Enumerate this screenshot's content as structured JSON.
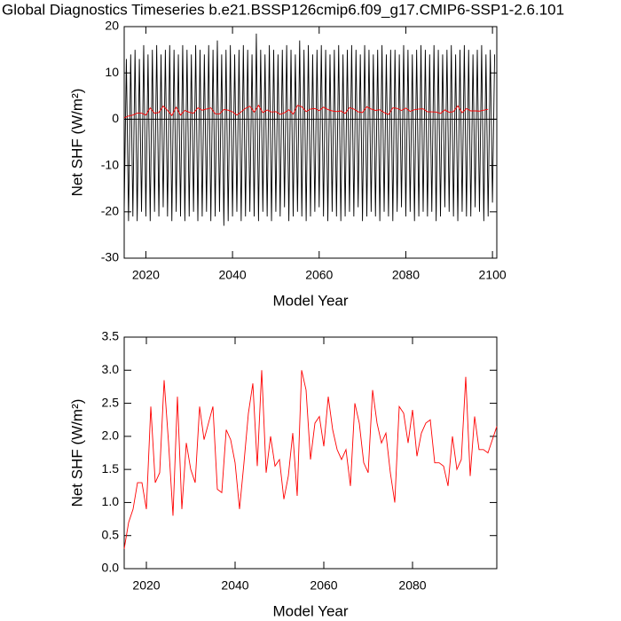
{
  "chart_data": [
    {
      "type": "line",
      "title": "Global Diagnostics Timeseries b.e21.BSSP126cmip6.f09_g17.CMIP6-SSP1-2.6.101",
      "xlabel": "Model Year",
      "ylabel": "Net SHF (W/m²)",
      "xlim": [
        2015,
        2101
      ],
      "ylim": [
        -30,
        20
      ],
      "xticks": [
        2020,
        2040,
        2060,
        2080,
        2100
      ],
      "yticks": [
        -30,
        -20,
        -10,
        0,
        10,
        20
      ],
      "hline": 0,
      "series": [
        {
          "color": "#000000",
          "x": [
            2015,
            2015.5,
            2016,
            2016.5,
            2017,
            2017.5,
            2018,
            2018.5,
            2019,
            2019.5,
            2020,
            2020.5,
            2021,
            2021.5,
            2022,
            2022.5,
            2023,
            2023.5,
            2024,
            2024.5,
            2025,
            2025.5,
            2026,
            2026.5,
            2027,
            2027.5,
            2028,
            2028.5,
            2029,
            2029.5,
            2030,
            2030.5,
            2031,
            2031.5,
            2032,
            2032.5,
            2033,
            2033.5,
            2034,
            2034.5,
            2035,
            2035.5,
            2036,
            2036.5,
            2037,
            2037.5,
            2038,
            2038.5,
            2039,
            2039.5,
            2040,
            2040.5,
            2041,
            2041.5,
            2042,
            2042.5,
            2043,
            2043.5,
            2044,
            2044.5,
            2045,
            2045.5,
            2046,
            2046.5,
            2047,
            2047.5,
            2048,
            2048.5,
            2049,
            2049.5,
            2050,
            2050.5,
            2051,
            2051.5,
            2052,
            2052.5,
            2053,
            2053.5,
            2054,
            2054.5,
            2055,
            2055.5,
            2056,
            2056.5,
            2057,
            2057.5,
            2058,
            2058.5,
            2059,
            2059.5,
            2060,
            2060.5,
            2061,
            2061.5,
            2062,
            2062.5,
            2063,
            2063.5,
            2064,
            2064.5,
            2065,
            2065.5,
            2066,
            2066.5,
            2067,
            2067.5,
            2068,
            2068.5,
            2069,
            2069.5,
            2070,
            2070.5,
            2071,
            2071.5,
            2072,
            2072.5,
            2073,
            2073.5,
            2074,
            2074.5,
            2075,
            2075.5,
            2076,
            2076.5,
            2077,
            2077.5,
            2078,
            2078.5,
            2079,
            2079.5,
            2080,
            2080.5,
            2081,
            2081.5,
            2082,
            2082.5,
            2083,
            2083.5,
            2084,
            2084.5,
            2085,
            2085.5,
            2086,
            2086.5,
            2087,
            2087.5,
            2088,
            2088.5,
            2089,
            2089.5,
            2090,
            2090.5,
            2091,
            2091.5,
            2092,
            2092.5,
            2093,
            2093.5,
            2094,
            2094.5,
            2095,
            2095.5,
            2096,
            2096.5,
            2097,
            2097.5,
            2098,
            2098.5,
            2099,
            2099.5,
            2100,
            2100.5
          ],
          "values": [
            -20,
            13,
            -22,
            14,
            -21,
            15,
            -22,
            13,
            -20,
            16,
            -21,
            14,
            -22,
            15,
            -20,
            16,
            -21,
            14,
            -19,
            15,
            -21,
            16,
            -22,
            15,
            -20,
            14,
            -21,
            16,
            -22,
            15,
            -21,
            14,
            -20,
            16,
            -22,
            15,
            -21,
            14,
            -20,
            16,
            -22,
            15,
            -21,
            17,
            -20,
            14,
            -23,
            15,
            -22,
            16,
            -21,
            14,
            -20,
            15,
            -22,
            16,
            -21,
            15,
            -20,
            14,
            -21,
            18.5,
            -22,
            15,
            -20,
            14,
            -21,
            16,
            -22,
            15,
            -20,
            14,
            -21,
            15,
            -19,
            16,
            -22,
            15,
            -21,
            14,
            -20,
            17,
            -21,
            15,
            -22,
            16,
            -21,
            14,
            -20,
            15,
            -19,
            16,
            -21,
            15,
            -22,
            14,
            -20,
            15,
            -21,
            16,
            -22,
            14,
            -21,
            15,
            -20,
            16,
            -21,
            15,
            -19,
            14,
            -22,
            16,
            -21,
            15,
            -20,
            14,
            -21,
            15,
            -22,
            16,
            -20,
            14,
            -21,
            15,
            -22,
            15,
            -20,
            14,
            -19,
            16,
            -21,
            15,
            -20,
            14,
            -22,
            15,
            -21,
            16,
            -20,
            15,
            -21,
            14,
            -20,
            16,
            -22,
            15,
            -21,
            14,
            -19,
            15,
            -20,
            16,
            -21,
            14,
            -22,
            15,
            -20,
            16,
            -21,
            15,
            -21,
            14,
            -19,
            15,
            -20,
            16,
            -22,
            14,
            -21,
            15,
            -18,
            14
          ]
        },
        {
          "color": "#ff0000",
          "x": [
            2015,
            2016,
            2017,
            2018,
            2019,
            2020,
            2021,
            2022,
            2023,
            2024,
            2025,
            2026,
            2027,
            2028,
            2029,
            2030,
            2031,
            2032,
            2033,
            2034,
            2035,
            2036,
            2037,
            2038,
            2039,
            2040,
            2041,
            2042,
            2043,
            2044,
            2045,
            2046,
            2047,
            2048,
            2049,
            2050,
            2051,
            2052,
            2053,
            2054,
            2055,
            2056,
            2057,
            2058,
            2059,
            2060,
            2061,
            2062,
            2063,
            2064,
            2065,
            2066,
            2067,
            2068,
            2069,
            2070,
            2071,
            2072,
            2073,
            2074,
            2075,
            2076,
            2077,
            2078,
            2079,
            2080,
            2081,
            2082,
            2083,
            2084,
            2085,
            2086,
            2087,
            2088,
            2089,
            2090,
            2091,
            2092,
            2093,
            2094,
            2095,
            2096,
            2097,
            2098,
            2099
          ],
          "values": [
            0.3,
            0.7,
            0.9,
            1.3,
            1.3,
            0.9,
            2.45,
            1.3,
            1.45,
            2.85,
            1.9,
            0.8,
            2.6,
            0.9,
            1.9,
            1.5,
            1.3,
            2.45,
            1.95,
            2.2,
            2.45,
            1.2,
            1.15,
            2.1,
            1.95,
            1.6,
            0.9,
            1.6,
            2.35,
            2.8,
            1.55,
            3.0,
            1.45,
            2.0,
            1.55,
            1.65,
            1.05,
            1.4,
            2.05,
            1.1,
            3.0,
            2.7,
            1.65,
            2.2,
            2.3,
            1.85,
            2.6,
            2.1,
            1.8,
            1.65,
            1.8,
            1.25,
            2.5,
            2.2,
            1.6,
            1.45,
            2.7,
            2.2,
            1.9,
            2.05,
            1.45,
            1.0,
            2.45,
            2.35,
            1.9,
            2.4,
            1.7,
            2.05,
            2.2,
            2.25,
            1.6,
            1.6,
            1.55,
            1.25,
            2.0,
            1.5,
            1.65,
            2.9,
            1.4,
            2.3,
            1.8,
            1.8,
            1.75,
            1.95,
            2.15
          ]
        }
      ]
    },
    {
      "type": "line",
      "xlabel": "Model Year",
      "ylabel": "Net SHF (W/m²)",
      "xlim": [
        2015,
        2099
      ],
      "ylim": [
        0,
        3.5
      ],
      "xticks": [
        2020,
        2040,
        2060,
        2080
      ],
      "yticks": [
        {
          "value": 0,
          "label": "0.0"
        },
        0.5,
        {
          "value": 1,
          "label": "1.0"
        },
        1.5,
        {
          "value": 2,
          "label": "2.0"
        },
        2.5,
        {
          "value": 3,
          "label": "3.0"
        },
        3.5
      ],
      "series": [
        {
          "color": "#ff0000",
          "x": [
            2015,
            2016,
            2017,
            2018,
            2019,
            2020,
            2021,
            2022,
            2023,
            2024,
            2025,
            2026,
            2027,
            2028,
            2029,
            2030,
            2031,
            2032,
            2033,
            2034,
            2035,
            2036,
            2037,
            2038,
            2039,
            2040,
            2041,
            2042,
            2043,
            2044,
            2045,
            2046,
            2047,
            2048,
            2049,
            2050,
            2051,
            2052,
            2053,
            2054,
            2055,
            2056,
            2057,
            2058,
            2059,
            2060,
            2061,
            2062,
            2063,
            2064,
            2065,
            2066,
            2067,
            2068,
            2069,
            2070,
            2071,
            2072,
            2073,
            2074,
            2075,
            2076,
            2077,
            2078,
            2079,
            2080,
            2081,
            2082,
            2083,
            2084,
            2085,
            2086,
            2087,
            2088,
            2089,
            2090,
            2091,
            2092,
            2093,
            2094,
            2095,
            2096,
            2097,
            2098,
            2099
          ],
          "values": [
            0.3,
            0.7,
            0.9,
            1.3,
            1.3,
            0.9,
            2.45,
            1.3,
            1.45,
            2.85,
            1.9,
            0.8,
            2.6,
            0.9,
            1.9,
            1.5,
            1.3,
            2.45,
            1.95,
            2.2,
            2.45,
            1.2,
            1.15,
            2.1,
            1.95,
            1.6,
            0.9,
            1.6,
            2.35,
            2.8,
            1.55,
            3.0,
            1.45,
            2.0,
            1.55,
            1.65,
            1.05,
            1.4,
            2.05,
            1.1,
            3.0,
            2.7,
            1.65,
            2.2,
            2.3,
            1.85,
            2.6,
            2.1,
            1.8,
            1.65,
            1.8,
            1.25,
            2.5,
            2.2,
            1.6,
            1.45,
            2.7,
            2.2,
            1.9,
            2.05,
            1.45,
            1.0,
            2.45,
            2.35,
            1.9,
            2.4,
            1.7,
            2.05,
            2.2,
            2.25,
            1.6,
            1.6,
            1.55,
            1.25,
            2.0,
            1.5,
            1.65,
            2.9,
            1.4,
            2.3,
            1.8,
            1.8,
            1.75,
            1.95,
            2.15
          ]
        }
      ]
    }
  ]
}
